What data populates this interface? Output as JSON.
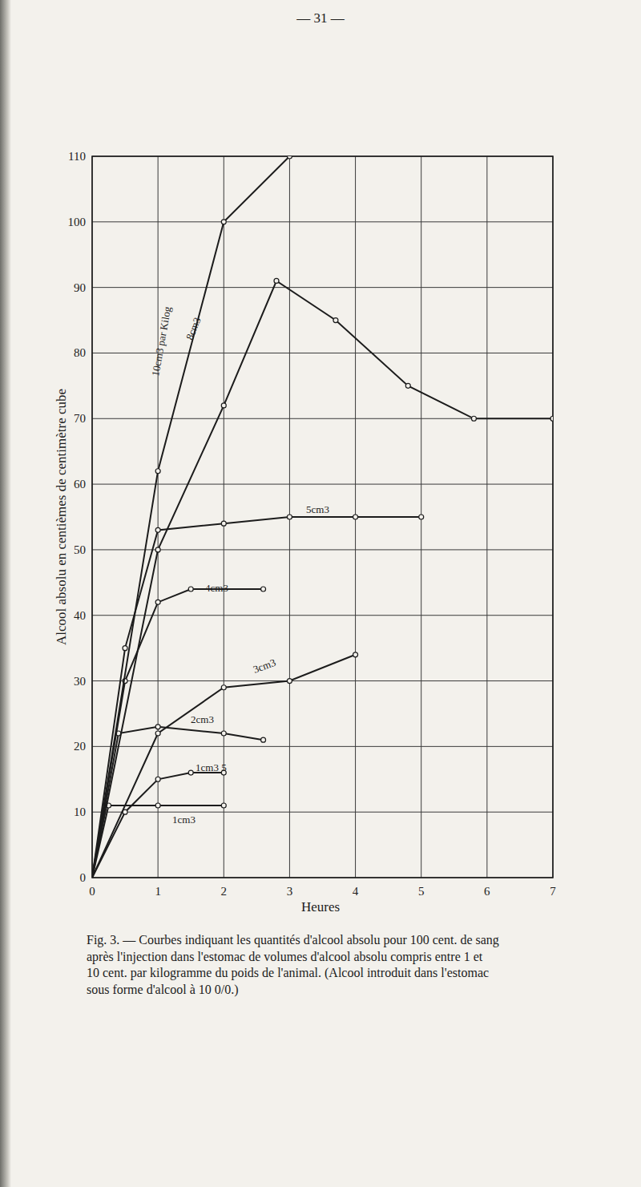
{
  "page_number": "— 31 —",
  "chart_data": {
    "type": "line",
    "x_label": "Heures",
    "y_label": "Alcool absolu en centièmes de centimètre cube",
    "xlim": [
      0,
      7
    ],
    "xticks": [
      0,
      1,
      2,
      3,
      4,
      5,
      6,
      7
    ],
    "ylim": [
      0,
      110
    ],
    "yticks": [
      0,
      10,
      20,
      30,
      40,
      50,
      60,
      70,
      80,
      90,
      100,
      110
    ],
    "grid": true,
    "color": "#1c1c1c",
    "marker": "circle",
    "series": [
      {
        "name": "1cm3",
        "x": [
          0,
          0.25,
          1,
          2
        ],
        "values": [
          0,
          11,
          11,
          11
        ]
      },
      {
        "name": "1cm3 5",
        "x": [
          0,
          0.5,
          1,
          1.5,
          2
        ],
        "values": [
          0,
          10,
          15,
          16,
          16
        ]
      },
      {
        "name": "2cm3",
        "x": [
          0,
          0.4,
          1,
          2,
          2.6
        ],
        "values": [
          0,
          22,
          23,
          22,
          21
        ]
      },
      {
        "name": "3cm3",
        "x": [
          0,
          1,
          2,
          3,
          4
        ],
        "values": [
          0,
          22,
          29,
          30,
          34
        ]
      },
      {
        "name": "4cm3",
        "x": [
          0,
          0.5,
          1,
          1.5,
          2.6
        ],
        "values": [
          0,
          30,
          42,
          44,
          44
        ]
      },
      {
        "name": "5cm3",
        "x": [
          0,
          0.5,
          1,
          2,
          3,
          4,
          5
        ],
        "values": [
          0,
          35,
          53,
          54,
          55,
          55,
          55
        ]
      },
      {
        "name": "8cm3",
        "x": [
          0,
          1,
          2,
          2.8,
          3.7,
          4.8,
          5.8,
          7
        ],
        "values": [
          0,
          50,
          72,
          91,
          85,
          75,
          70,
          70
        ]
      },
      {
        "name": "10cm3 par Kilog",
        "x": [
          0,
          1,
          2,
          3
        ],
        "values": [
          0,
          62,
          100,
          110
        ]
      }
    ]
  },
  "caption": [
    "Fig. 3. — Courbes indiquant les quantités d'alcool absolu pour 100 cent. de sang",
    "après l'injection dans l'estomac de volumes d'alcool absolu compris entre 1 et",
    "10 cent. par kilogramme du poids de l'animal. (Alcool introduit dans l'estomac",
    "sous forme d'alcool à 10 0/0.)"
  ]
}
